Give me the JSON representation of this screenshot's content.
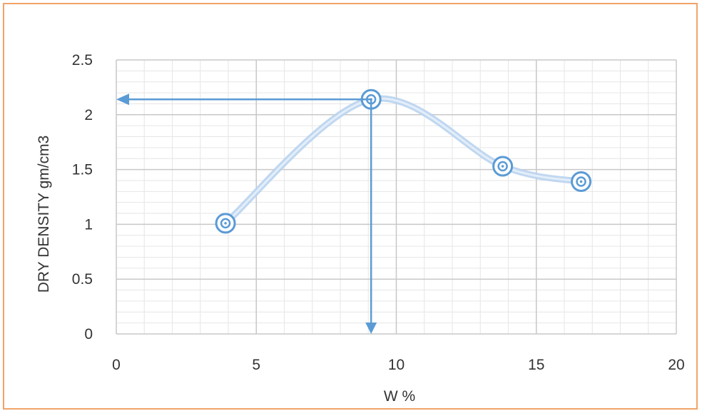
{
  "chart_data": {
    "type": "scatter",
    "title": "",
    "xlabel": "W %",
    "ylabel": "DRY DENSITY gm/cm3",
    "xlim": [
      0,
      20
    ],
    "ylim": [
      0,
      2.5
    ],
    "x_ticks": [
      "0",
      "5",
      "10",
      "15",
      "20"
    ],
    "y_ticks": [
      "0",
      "0.5",
      "1",
      "1.5",
      "2",
      "2.5"
    ],
    "grid": true,
    "legend": "none",
    "smooth_line": true,
    "series": [
      {
        "x": [
          3.9,
          9.1,
          13.8,
          16.6
        ],
        "y": [
          1.01,
          2.14,
          1.53,
          1.39
        ]
      }
    ],
    "annotations": [
      {
        "type": "arrow-to-y-axis",
        "from_x": 9.1,
        "y": 2.14
      },
      {
        "type": "arrow-to-x-axis",
        "x": 9.1,
        "from_y": 2.14
      }
    ],
    "colors": {
      "line": "#b9d3ee",
      "marker": "#5b9bd5",
      "arrow": "#5b9bd5",
      "grid_major": "#c8c8c8",
      "grid_minor": "#e6e6e6",
      "border": "#f0a46a"
    }
  }
}
